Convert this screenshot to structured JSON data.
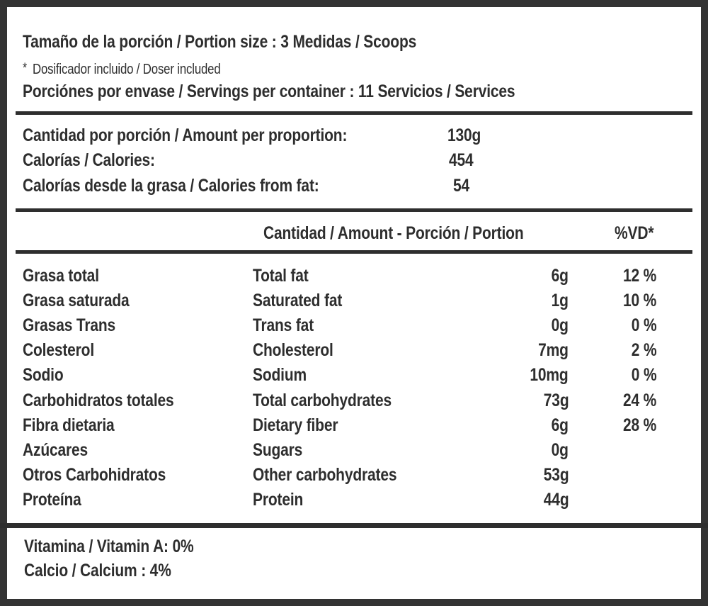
{
  "header": {
    "portion_size": "Tamaño de la porción / Portion size : 3 Medidas / Scoops",
    "doser_asterisk": "*",
    "doser_note": "Dosificador incluido / Doser included",
    "servings": "Porciónes por envase / Servings per container : 11 Servicios / Services"
  },
  "summary": [
    {
      "label": "Cantidad por porción / Amount per proportion:",
      "value": "130g"
    },
    {
      "label": "Calorías / Calories:",
      "value": "454"
    },
    {
      "label": "Calorías desde la grasa / Calories from fat:",
      "value": "54"
    }
  ],
  "table": {
    "header_amount": "Cantidad / Amount - Porción / Portion",
    "header_dv": "%VD*",
    "rows": [
      {
        "es": "Grasa total",
        "en": "Total fat",
        "amount": "6g",
        "dv": "12 %"
      },
      {
        "es": "Grasa saturada",
        "en": "Saturated fat",
        "amount": "1g",
        "dv": "10 %"
      },
      {
        "es": "Grasas Trans",
        "en": "Trans fat",
        "amount": "0g",
        "dv": "0 %"
      },
      {
        "es": "Colesterol",
        "en": "Cholesterol",
        "amount": "7mg",
        "dv": "2 %"
      },
      {
        "es": "Sodio",
        "en": "Sodium",
        "amount": "10mg",
        "dv": "0 %"
      },
      {
        "es": "Carbohidratos totales",
        "en": "Total carbohydrates",
        "amount": "73g",
        "dv": "24 %"
      },
      {
        "es": "Fibra dietaria",
        "en": "Dietary fiber",
        "amount": "6g",
        "dv": "28 %"
      },
      {
        "es": "Azúcares",
        "en": "Sugars",
        "amount": "0g",
        "dv": ""
      },
      {
        "es": "Otros Carbohidratos",
        "en": "Other carbohydrates",
        "amount": "53g",
        "dv": ""
      },
      {
        "es": "Proteína",
        "en": "Protein",
        "amount": "44g",
        "dv": ""
      }
    ]
  },
  "footer": {
    "vitamin_a": "Vitamina / Vitamin A: 0%",
    "calcium": "Calcio / Calcium : 4%"
  }
}
